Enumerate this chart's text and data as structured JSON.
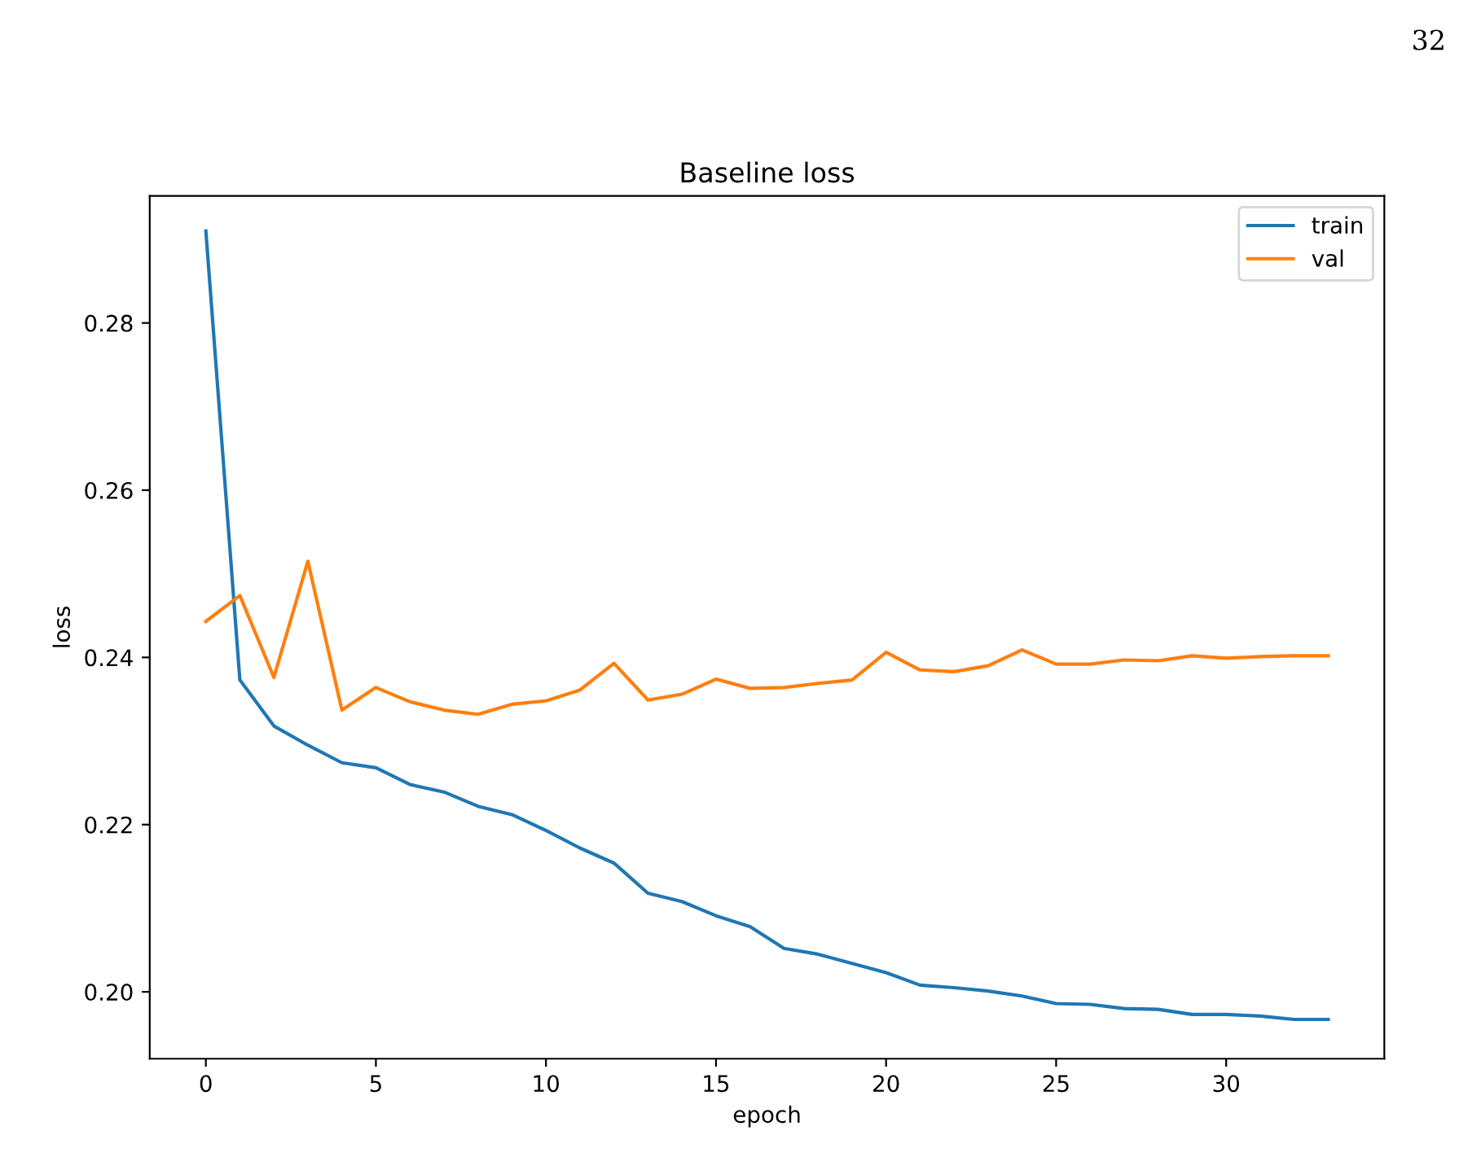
{
  "chart_data": {
    "type": "line",
    "title": "Baseline loss",
    "xlabel": "epoch",
    "ylabel": "loss",
    "annotations": [
      "32"
    ],
    "x": [
      0,
      1,
      2,
      3,
      4,
      5,
      6,
      7,
      8,
      9,
      10,
      11,
      12,
      13,
      14,
      15,
      16,
      17,
      18,
      19,
      20,
      21,
      22,
      23,
      24,
      25,
      26,
      27,
      28,
      29,
      30,
      31,
      32,
      33
    ],
    "series": [
      {
        "name": "train",
        "color": "#1f77b4",
        "values": [
          0.291,
          0.2373,
          0.2318,
          0.2295,
          0.2274,
          0.2268,
          0.2248,
          0.2239,
          0.2222,
          0.2212,
          0.2193,
          0.2172,
          0.2154,
          0.2118,
          0.2108,
          0.2091,
          0.2078,
          0.2052,
          0.2045,
          0.2034,
          0.2023,
          0.2008,
          0.2005,
          0.2001,
          0.1995,
          0.1986,
          0.1985,
          0.198,
          0.1979,
          0.1973,
          0.1973,
          0.1971,
          0.1967,
          0.1967
        ]
      },
      {
        "name": "val",
        "color": "#ff7f0e",
        "values": [
          0.2443,
          0.2474,
          0.2376,
          0.2515,
          0.2337,
          0.2364,
          0.2347,
          0.2337,
          0.2332,
          0.2344,
          0.2348,
          0.2361,
          0.2393,
          0.2349,
          0.2356,
          0.2374,
          0.2363,
          0.2364,
          0.2369,
          0.2373,
          0.2406,
          0.2385,
          0.2383,
          0.239,
          0.2409,
          0.2392,
          0.2392,
          0.2397,
          0.2396,
          0.2402,
          0.2399,
          0.2401,
          0.2402,
          0.2402
        ]
      }
    ],
    "xlim": [
      -1.65,
      34.65
    ],
    "ylim": [
      0.192,
      0.2952
    ],
    "xticks": [
      0,
      5,
      10,
      15,
      20,
      25,
      30
    ],
    "yticks": [
      {
        "value": 0.2,
        "label": "0.20"
      },
      {
        "value": 0.22,
        "label": "0.22"
      },
      {
        "value": 0.24,
        "label": "0.24"
      },
      {
        "value": 0.26,
        "label": "0.26"
      },
      {
        "value": 0.28,
        "label": "0.28"
      }
    ],
    "grid": false,
    "legend": "top right",
    "line_style": "solid",
    "marker": "none"
  }
}
